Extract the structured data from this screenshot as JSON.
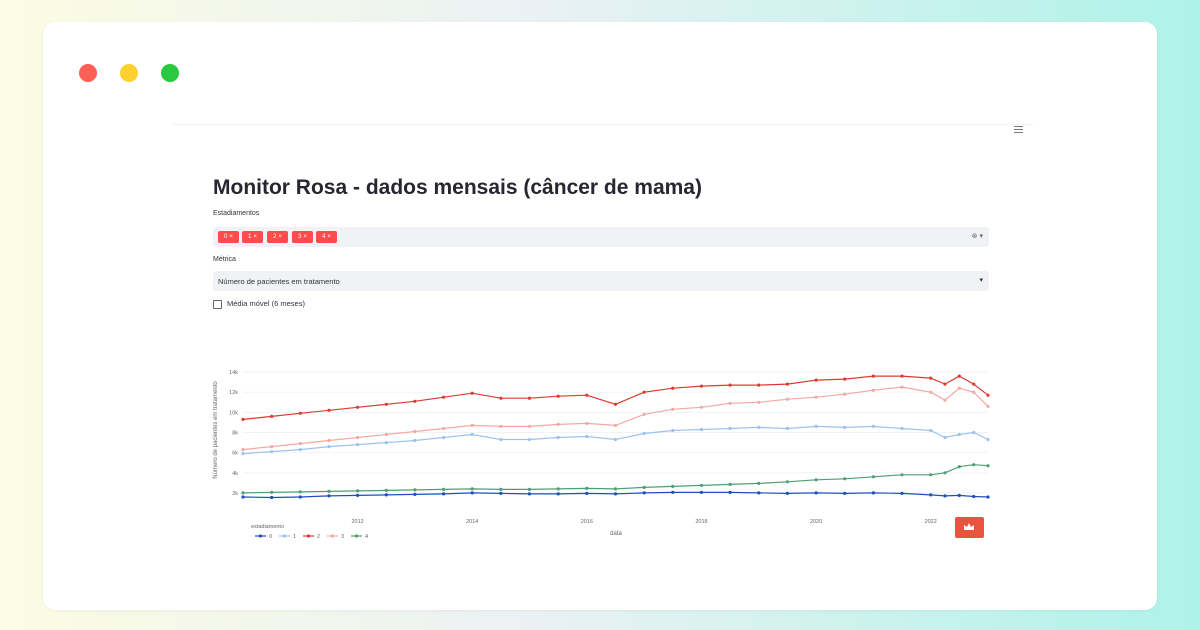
{
  "window": {
    "controls": [
      "close",
      "minimize",
      "maximize"
    ]
  },
  "menu": {
    "icon": "hamburger-menu-icon"
  },
  "page": {
    "title": "Monitor Rosa - dados mensais (câncer de mama)"
  },
  "filters": {
    "estadiamentos_label": "Estadiamentos",
    "selected": [
      "0 ×",
      "1 ×",
      "2 ×",
      "3 ×",
      "4 ×"
    ],
    "tag_color": "#ff4b4b",
    "tools": "⊗ ▾",
    "metrica_label": "Métrica",
    "metrica_value": "Número de pacientes em tratamento",
    "metrica_caret": "▾",
    "media_movel_label": "Média móvel (6 meses)",
    "media_movel_checked": false
  },
  "colors": {
    "s0": "#1f4fbf",
    "s1": "#9cc3ef",
    "s2": "#dc3b32",
    "s3": "#f3a8a4",
    "s4": "#4f9e76"
  },
  "chart_data": {
    "type": "line",
    "xlabel": "data",
    "ylabel": "Número de pacientes em tratamento",
    "x_range": [
      "2010-01",
      "2023-01"
    ],
    "y_range": [
      1000,
      14500
    ],
    "y_ticks": [
      "14k",
      "12k",
      "10k",
      "8k",
      "6k",
      "4k",
      "2k"
    ],
    "x_ticks": [
      "2012",
      "2014",
      "2016",
      "2018",
      "2020",
      "2022"
    ],
    "legend_title": "estadiamento",
    "legend_position": "bottom-left",
    "x": [
      "2010-01",
      "2010-07",
      "2011-01",
      "2011-07",
      "2012-01",
      "2012-07",
      "2013-01",
      "2013-07",
      "2014-01",
      "2014-07",
      "2015-01",
      "2015-07",
      "2016-01",
      "2016-07",
      "2017-01",
      "2017-07",
      "2018-01",
      "2018-07",
      "2019-01",
      "2019-07",
      "2020-01",
      "2020-07",
      "2021-01",
      "2021-07",
      "2022-01",
      "2022-04",
      "2022-07",
      "2022-10",
      "2023-01"
    ],
    "series": [
      {
        "name": "0",
        "values": [
          1600,
          1550,
          1600,
          1700,
          1750,
          1800,
          1850,
          1900,
          2000,
          1950,
          1900,
          1900,
          1950,
          1900,
          2000,
          2050,
          2050,
          2050,
          2000,
          1950,
          2000,
          1950,
          2000,
          1950,
          1800,
          1700,
          1750,
          1650,
          1600
        ]
      },
      {
        "name": "1",
        "values": [
          5900,
          6100,
          6300,
          6600,
          6800,
          7000,
          7200,
          7500,
          7800,
          7300,
          7300,
          7500,
          7600,
          7300,
          7900,
          8200,
          8300,
          8400,
          8500,
          8400,
          8600,
          8500,
          8600,
          8400,
          8200,
          7500,
          7800,
          8000,
          7300
        ]
      },
      {
        "name": "2",
        "values": [
          9300,
          9600,
          9900,
          10200,
          10500,
          10800,
          11100,
          11500,
          11900,
          11400,
          11400,
          11600,
          11700,
          10800,
          12000,
          12400,
          12600,
          12700,
          12700,
          12800,
          13200,
          13300,
          13600,
          13600,
          13400,
          12800,
          13600,
          12800,
          11700
        ]
      },
      {
        "name": "3",
        "values": [
          6300,
          6600,
          6900,
          7200,
          7500,
          7800,
          8100,
          8400,
          8700,
          8600,
          8600,
          8800,
          8900,
          8700,
          9800,
          10300,
          10500,
          10900,
          11000,
          11300,
          11500,
          11800,
          12200,
          12500,
          12000,
          11200,
          12400,
          12000,
          10600
        ]
      },
      {
        "name": "4",
        "values": [
          2000,
          2050,
          2100,
          2150,
          2200,
          2250,
          2300,
          2350,
          2400,
          2350,
          2350,
          2400,
          2450,
          2400,
          2550,
          2650,
          2750,
          2850,
          2950,
          3100,
          3300,
          3400,
          3600,
          3800,
          3800,
          4000,
          4600,
          4800,
          4700
        ]
      }
    ]
  }
}
